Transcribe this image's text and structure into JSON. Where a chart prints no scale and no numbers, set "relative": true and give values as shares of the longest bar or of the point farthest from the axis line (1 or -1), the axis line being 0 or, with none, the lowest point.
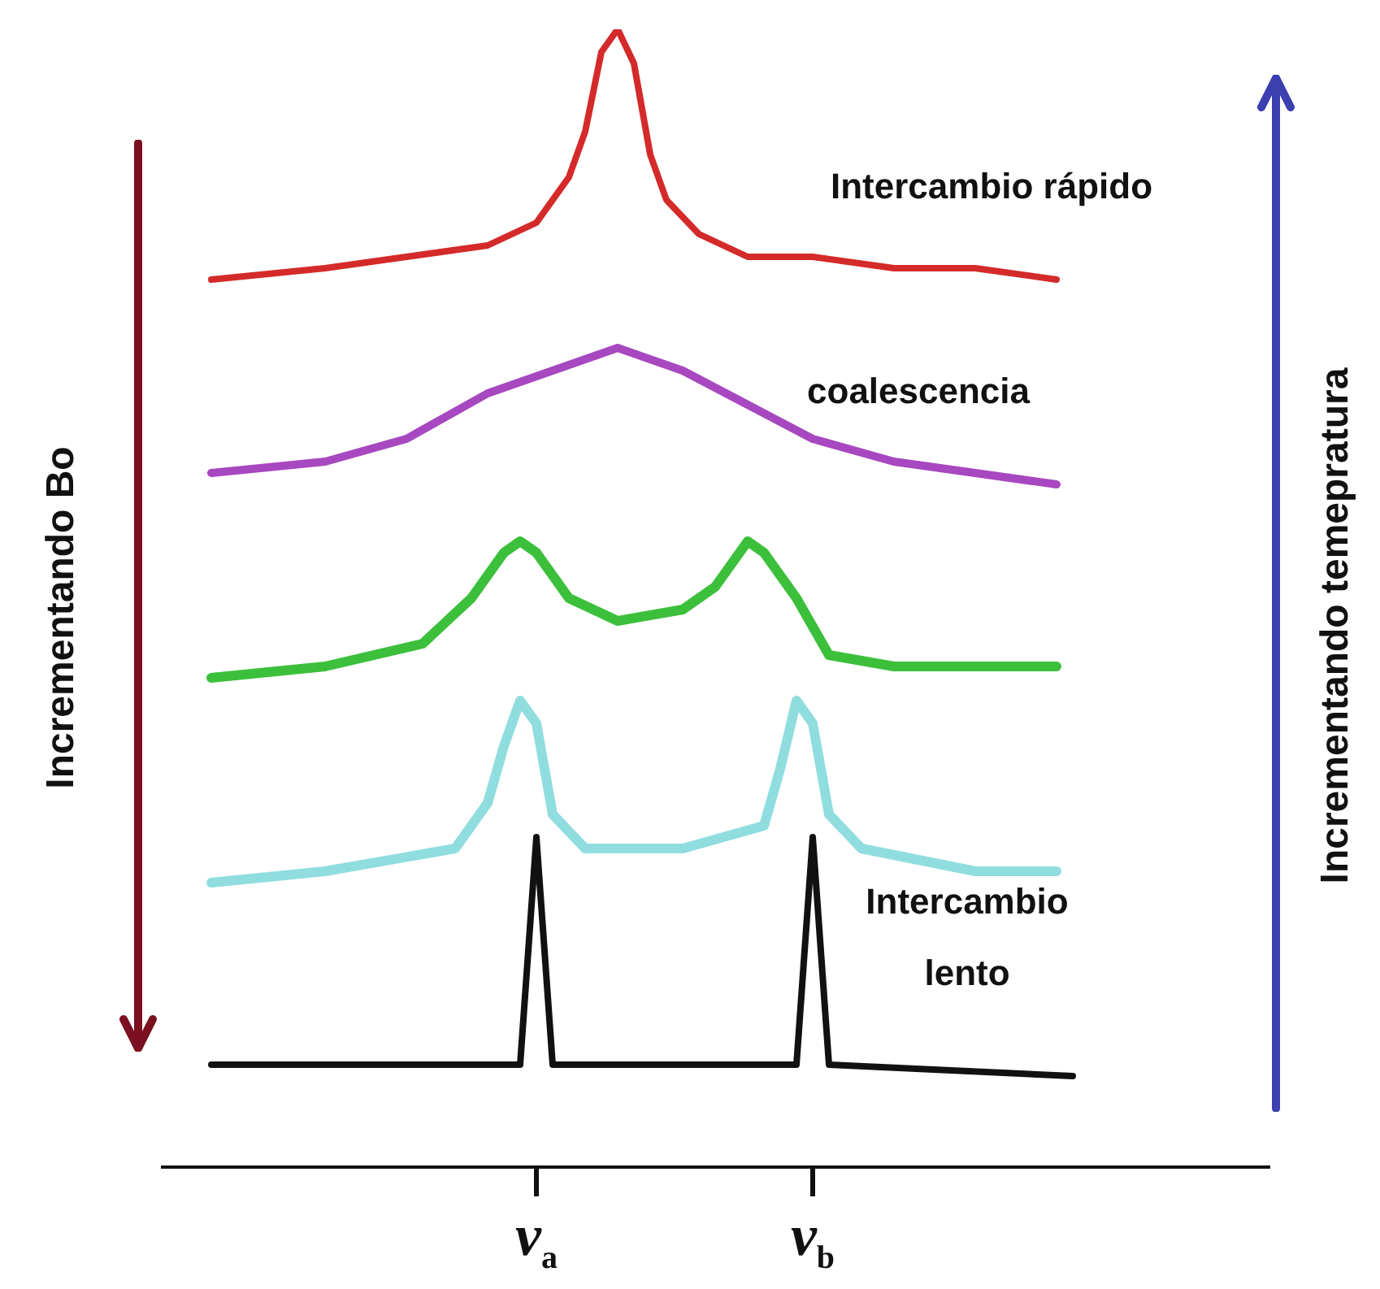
{
  "chart_data": {
    "type": "line",
    "relative": true,
    "categories": [
      null,
      null,
      null,
      null,
      null,
      null,
      null,
      null,
      null,
      null,
      null,
      null,
      null,
      null,
      null,
      null,
      null,
      null,
      null,
      null,
      null,
      null,
      null,
      "ν$_{a}$",
      null,
      null,
      null,
      null,
      null,
      null,
      null,
      null,
      null,
      null,
      null,
      null,
      null,
      null,
      null,
      null,
      "ν$_{b}$",
      null,
      null,
      null,
      null,
      null,
      null,
      null,
      null,
      null,
      null,
      null,
      null,
      null,
      null,
      null,
      null,
      null,
      null,
      null,
      null,
      null,
      null,
      null,
      null,
      null,
      null,
      null,
      null
    ],
    "series": [
      {
        "name": "Intercambio rápido",
        "color": "#d42a2a",
        "values": [
          null,
          null,
          null,
          0.78,
          null,
          null,
          null,
          null,
          null,
          null,
          0.79,
          null,
          null,
          null,
          null,
          0.8,
          null,
          null,
          null,
          null,
          0.81,
          null,
          null,
          0.83,
          null,
          0.87,
          0.91,
          0.98,
          1,
          0.97,
          0.89,
          0.85,
          null,
          0.82,
          null,
          null,
          0.8,
          null,
          null,
          null,
          0.8,
          null,
          null,
          null,
          null,
          0.79,
          null,
          null,
          null,
          null,
          0.79,
          null,
          null,
          null,
          null,
          0.78,
          null,
          null,
          null,
          null,
          null,
          null,
          null,
          null,
          null,
          null,
          null,
          null,
          null
        ]
      },
      {
        "name": "coalescencia",
        "color": "#a748c0",
        "values": [
          null,
          null,
          null,
          0.61,
          null,
          null,
          null,
          null,
          null,
          null,
          0.62,
          null,
          null,
          null,
          null,
          0.64,
          null,
          null,
          null,
          null,
          0.68,
          null,
          null,
          null,
          0.7,
          null,
          null,
          null,
          0.72,
          null,
          null,
          null,
          0.7,
          null,
          null,
          null,
          0.67,
          null,
          null,
          null,
          0.64,
          null,
          null,
          null,
          null,
          0.62,
          null,
          null,
          null,
          null,
          0.61,
          null,
          null,
          null,
          null,
          0.6,
          null,
          null,
          null,
          null,
          null,
          null,
          null,
          null,
          null,
          null,
          null,
          null,
          null
        ]
      },
      {
        "color": "#3cc03c",
        "values": [
          null,
          null,
          null,
          0.43,
          null,
          null,
          null,
          null,
          null,
          null,
          0.44,
          null,
          null,
          null,
          null,
          null,
          0.46,
          null,
          null,
          0.5,
          null,
          0.54,
          0.55,
          0.54,
          null,
          0.5,
          null,
          null,
          0.48,
          null,
          null,
          null,
          0.49,
          null,
          0.51,
          null,
          0.55,
          0.54,
          null,
          0.5,
          null,
          0.45,
          null,
          null,
          null,
          0.44,
          null,
          null,
          null,
          null,
          0.44,
          null,
          null,
          null,
          null,
          0.44,
          null,
          null,
          null,
          null,
          null,
          null,
          null,
          null,
          null,
          null,
          null,
          null,
          null
        ]
      },
      {
        "color": "#90dde0",
        "values": [
          null,
          null,
          null,
          0.25,
          null,
          null,
          null,
          null,
          null,
          null,
          0.26,
          null,
          null,
          null,
          null,
          null,
          null,
          null,
          0.28,
          null,
          0.32,
          0.37,
          0.41,
          0.39,
          0.31,
          null,
          0.28,
          null,
          null,
          null,
          null,
          null,
          0.28,
          null,
          null,
          null,
          null,
          0.3,
          0.35,
          0.41,
          0.39,
          0.31,
          null,
          0.28,
          null,
          null,
          null,
          null,
          null,
          null,
          0.26,
          null,
          null,
          null,
          null,
          0.26,
          null,
          null,
          null,
          null,
          null,
          null,
          null,
          null,
          null,
          null,
          null,
          null,
          null
        ]
      },
      {
        "name": "Intercambio lento",
        "color": "#111111",
        "values": [
          null,
          null,
          null,
          0.09,
          null,
          null,
          null,
          null,
          null,
          null,
          null,
          null,
          null,
          null,
          null,
          null,
          null,
          null,
          null,
          null,
          0.09,
          null,
          0.09,
          0.29,
          0.09,
          null,
          null,
          null,
          null,
          null,
          null,
          null,
          null,
          null,
          null,
          null,
          null,
          null,
          null,
          0.09,
          0.29,
          0.09,
          null,
          null,
          null,
          null,
          null,
          null,
          null,
          null,
          null,
          null,
          null,
          null,
          null,
          null,
          0.08,
          null,
          null,
          null,
          null,
          null,
          null,
          null,
          null,
          null,
          null,
          null,
          null
        ]
      }
    ],
    "annotations": [
      "Incrementando Bo",
      "Incrementando temepratura"
    ]
  }
}
